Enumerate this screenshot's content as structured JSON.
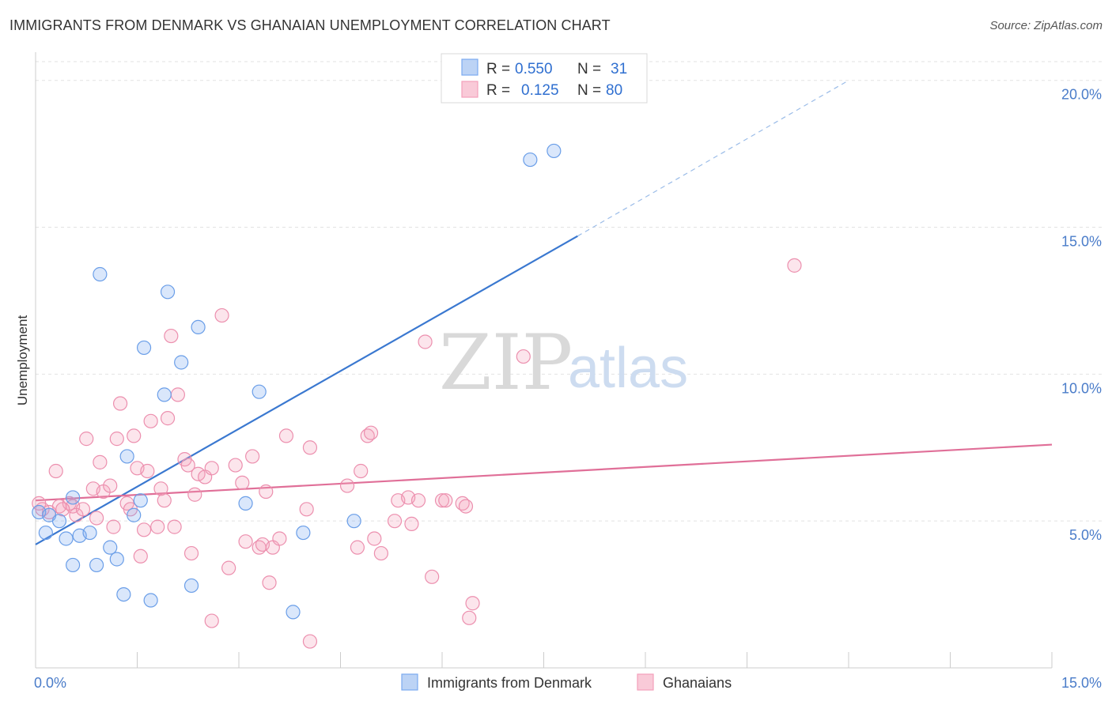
{
  "title": "IMMIGRANTS FROM DENMARK VS GHANAIAN UNEMPLOYMENT CORRELATION CHART",
  "source": "Source: ZipAtlas.com",
  "watermark": {
    "zip": "ZIP",
    "atlas": "atlas"
  },
  "colors": {
    "blue": "#7baaf0",
    "blue_line": "#3a78d0",
    "pink": "#f4a0bb",
    "pink_line": "#e06f98",
    "tick": "#4a7cc9"
  },
  "chart_data": {
    "type": "scatter",
    "ylabel": "Unemployment",
    "xlim": [
      0,
      15
    ],
    "ylim": [
      0,
      20.8
    ],
    "x_tick_labels": [
      {
        "v": 0,
        "label": "0.0%"
      },
      {
        "v": 15,
        "label": "15.0%"
      }
    ],
    "y_tick_labels": [
      {
        "v": 5,
        "label": "5.0%"
      },
      {
        "v": 10,
        "label": "10.0%"
      },
      {
        "v": 15,
        "label": "15.0%"
      },
      {
        "v": 20,
        "label": "20.0%"
      }
    ],
    "legend": [
      {
        "r_label": "R =",
        "r_value": "0.550",
        "n_label": "N =",
        "n_value": "31"
      },
      {
        "r_label": "R =",
        "r_value": "0.125",
        "n_label": "N =",
        "n_value": "80"
      }
    ],
    "series": [
      {
        "name": "Immigrants from Denmark",
        "color": "#7baaf0",
        "trend": {
          "x0": 0,
          "y0": 4.2,
          "x1": 8.0,
          "y1": 14.7,
          "dash_x1": 12.0,
          "dash_y1": 20.0
        },
        "points": [
          [
            0.05,
            5.3
          ],
          [
            0.2,
            5.2
          ],
          [
            0.35,
            5.0
          ],
          [
            0.15,
            4.6
          ],
          [
            0.45,
            4.4
          ],
          [
            0.55,
            5.8
          ],
          [
            0.65,
            4.5
          ],
          [
            0.8,
            4.6
          ],
          [
            0.55,
            3.5
          ],
          [
            0.9,
            3.5
          ],
          [
            1.1,
            4.1
          ],
          [
            1.2,
            3.7
          ],
          [
            1.3,
            2.5
          ],
          [
            1.35,
            7.2
          ],
          [
            1.45,
            5.2
          ],
          [
            1.55,
            5.7
          ],
          [
            1.6,
            10.9
          ],
          [
            1.7,
            2.3
          ],
          [
            1.9,
            9.3
          ],
          [
            1.95,
            12.8
          ],
          [
            2.15,
            10.4
          ],
          [
            2.3,
            2.8
          ],
          [
            2.4,
            11.6
          ],
          [
            3.1,
            5.6
          ],
          [
            3.3,
            9.4
          ],
          [
            3.8,
            1.9
          ],
          [
            3.95,
            4.6
          ],
          [
            4.7,
            5.0
          ],
          [
            7.3,
            17.3
          ],
          [
            7.65,
            17.6
          ],
          [
            0.95,
            13.4
          ]
        ]
      },
      {
        "name": "Ghanaians",
        "color": "#f4a0bb",
        "trend": {
          "x0": 0,
          "y0": 5.7,
          "x1": 15,
          "y1": 7.6
        },
        "points": [
          [
            0.05,
            5.6
          ],
          [
            0.1,
            5.4
          ],
          [
            0.2,
            5.3
          ],
          [
            0.3,
            6.7
          ],
          [
            0.35,
            5.5
          ],
          [
            0.5,
            5.6
          ],
          [
            0.55,
            5.5
          ],
          [
            0.6,
            5.2
          ],
          [
            0.7,
            5.4
          ],
          [
            0.75,
            7.8
          ],
          [
            0.85,
            6.1
          ],
          [
            0.9,
            5.1
          ],
          [
            0.95,
            7.0
          ],
          [
            1.0,
            6.0
          ],
          [
            1.1,
            6.2
          ],
          [
            1.15,
            4.8
          ],
          [
            1.2,
            7.8
          ],
          [
            1.25,
            9.0
          ],
          [
            1.35,
            5.6
          ],
          [
            1.4,
            5.4
          ],
          [
            1.45,
            7.9
          ],
          [
            1.5,
            6.8
          ],
          [
            1.55,
            3.8
          ],
          [
            1.6,
            4.7
          ],
          [
            1.65,
            6.7
          ],
          [
            1.7,
            8.4
          ],
          [
            1.8,
            4.8
          ],
          [
            1.85,
            6.1
          ],
          [
            1.9,
            5.7
          ],
          [
            1.95,
            8.5
          ],
          [
            2.0,
            11.3
          ],
          [
            2.05,
            4.8
          ],
          [
            2.1,
            9.3
          ],
          [
            2.2,
            7.1
          ],
          [
            2.25,
            6.9
          ],
          [
            2.3,
            3.9
          ],
          [
            2.35,
            5.9
          ],
          [
            2.4,
            6.6
          ],
          [
            2.5,
            6.5
          ],
          [
            2.6,
            6.8
          ],
          [
            2.6,
            1.6
          ],
          [
            2.75,
            12.0
          ],
          [
            2.85,
            3.4
          ],
          [
            2.95,
            6.9
          ],
          [
            3.05,
            6.3
          ],
          [
            3.1,
            4.3
          ],
          [
            3.2,
            7.2
          ],
          [
            3.3,
            4.1
          ],
          [
            3.35,
            4.2
          ],
          [
            3.4,
            6.0
          ],
          [
            3.45,
            2.9
          ],
          [
            3.5,
            4.1
          ],
          [
            3.6,
            4.4
          ],
          [
            3.7,
            7.9
          ],
          [
            4.0,
            5.4
          ],
          [
            4.05,
            7.5
          ],
          [
            4.05,
            0.9
          ],
          [
            4.6,
            6.2
          ],
          [
            4.75,
            4.1
          ],
          [
            4.8,
            6.7
          ],
          [
            4.9,
            7.9
          ],
          [
            4.95,
            8.0
          ],
          [
            5.0,
            4.4
          ],
          [
            5.1,
            3.9
          ],
          [
            5.3,
            5.0
          ],
          [
            5.35,
            5.7
          ],
          [
            5.5,
            5.8
          ],
          [
            5.55,
            4.9
          ],
          [
            5.65,
            5.7
          ],
          [
            5.75,
            11.1
          ],
          [
            5.85,
            3.1
          ],
          [
            6.0,
            5.7
          ],
          [
            6.05,
            5.7
          ],
          [
            6.3,
            5.6
          ],
          [
            6.35,
            5.5
          ],
          [
            6.4,
            1.7
          ],
          [
            6.45,
            2.2
          ],
          [
            7.2,
            10.6
          ],
          [
            11.2,
            13.7
          ],
          [
            0.4,
            5.4
          ]
        ]
      }
    ]
  }
}
